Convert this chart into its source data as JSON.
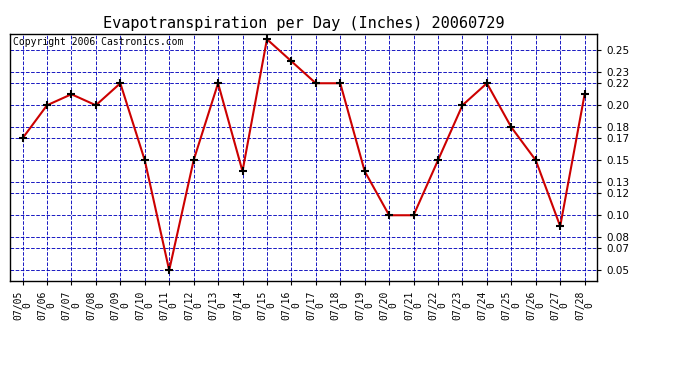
{
  "title": "Evapotranspiration per Day (Inches) 20060729",
  "copyright": "Copyright 2006 Castronics.com",
  "dates": [
    "07/05\n0",
    "07/06\n0",
    "07/07\n0",
    "07/08\n0",
    "07/09\n0",
    "07/10\n0",
    "07/11\n0",
    "07/12\n0",
    "07/13\n0",
    "07/14\n0",
    "07/15\n0",
    "07/16\n0",
    "07/17\n0",
    "07/18\n0",
    "07/19\n0",
    "07/20\n0",
    "07/21\n0",
    "07/22\n0",
    "07/23\n0",
    "07/24\n0",
    "07/25\n0",
    "07/26\n0",
    "07/27\n0",
    "07/28\n0"
  ],
  "values": [
    0.17,
    0.2,
    0.21,
    0.2,
    0.22,
    0.15,
    0.05,
    0.15,
    0.22,
    0.14,
    0.26,
    0.24,
    0.22,
    0.22,
    0.14,
    0.1,
    0.1,
    0.15,
    0.2,
    0.22,
    0.18,
    0.15,
    0.09,
    0.21
  ],
  "line_color": "#cc0000",
  "marker_color": "#000000",
  "bg_color": "#ffffff",
  "plot_bg": "#ffffff",
  "grid_color": "#0000bb",
  "yticks": [
    0.05,
    0.07,
    0.08,
    0.1,
    0.12,
    0.13,
    0.15,
    0.17,
    0.18,
    0.2,
    0.22,
    0.23,
    0.25
  ],
  "ylim": [
    0.04,
    0.265
  ],
  "title_fontsize": 11,
  "copyright_fontsize": 7
}
